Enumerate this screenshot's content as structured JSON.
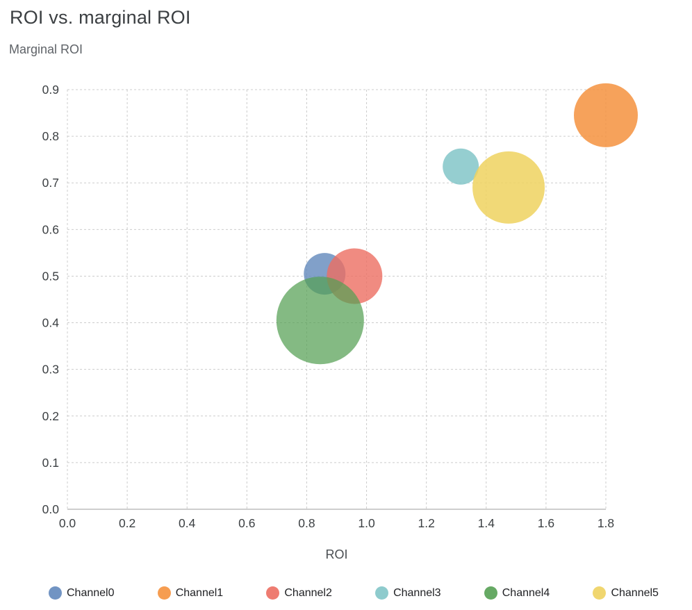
{
  "chart_data": {
    "type": "scatter",
    "subtype": "bubble",
    "title": "ROI vs. marginal ROI",
    "xlabel": "ROI",
    "ylabel": "Marginal ROI",
    "xlim": [
      0.0,
      1.8
    ],
    "ylim": [
      0.0,
      0.9
    ],
    "grid": "dashed",
    "legend_position": "bottom",
    "x_ticks": [
      "0.0",
      "0.2",
      "0.4",
      "0.6",
      "0.8",
      "1.0",
      "1.2",
      "1.4",
      "1.6",
      "1.8"
    ],
    "x_tick_values": [
      0.0,
      0.2,
      0.4,
      0.6,
      0.8,
      1.0,
      1.2,
      1.4,
      1.6,
      1.8
    ],
    "y_ticks": [
      "0.0",
      "0.1",
      "0.2",
      "0.3",
      "0.4",
      "0.5",
      "0.6",
      "0.7",
      "0.8",
      "0.9"
    ],
    "y_tick_values": [
      0.0,
      0.1,
      0.2,
      0.3,
      0.4,
      0.5,
      0.6,
      0.7,
      0.8,
      0.9
    ],
    "series": [
      {
        "name": "Channel0",
        "x": 0.86,
        "y": 0.505,
        "r": 30,
        "color": "#6288bc",
        "opacity": 0.8
      },
      {
        "name": "Channel1",
        "x": 1.8,
        "y": 0.845,
        "r": 46,
        "color": "#f5923e",
        "opacity": 0.85
      },
      {
        "name": "Channel2",
        "x": 0.96,
        "y": 0.5,
        "r": 40,
        "color": "#ec6e62",
        "opacity": 0.8
      },
      {
        "name": "Channel3",
        "x": 1.315,
        "y": 0.735,
        "r": 26,
        "color": "#82c5c8",
        "opacity": 0.85
      },
      {
        "name": "Channel4",
        "x": 0.845,
        "y": 0.405,
        "r": 63,
        "color": "#55a053",
        "opacity": 0.72
      },
      {
        "name": "Channel5",
        "x": 1.475,
        "y": 0.69,
        "r": 52,
        "color": "#eed25f",
        "opacity": 0.85
      }
    ],
    "colors": {
      "grid": "#cccccc",
      "axis_line": "#9e9e9e",
      "tick_label": "#3c4043"
    }
  }
}
